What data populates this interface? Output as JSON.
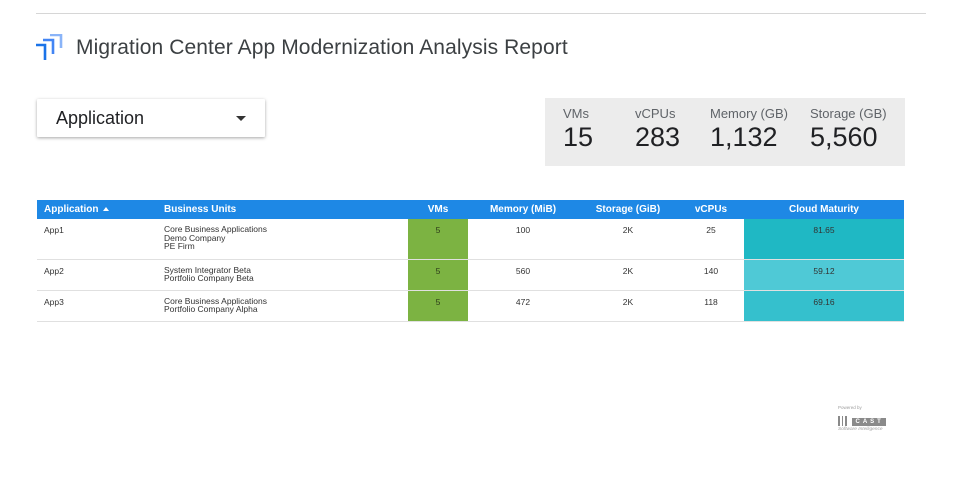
{
  "header": {
    "title": "Migration Center App Modernization Analysis Report",
    "logo_icon": "stacked-arrows-logo-icon",
    "logo_color": "#4285f4"
  },
  "filter": {
    "label": "Application",
    "icon": "caret-down-icon"
  },
  "kpis": [
    {
      "label": "VMs",
      "value": "15"
    },
    {
      "label": "vCPUs",
      "value": "283"
    },
    {
      "label": "Memory (GB)",
      "value": "1,132"
    },
    {
      "label": "Storage (GB)",
      "value": "5,560"
    }
  ],
  "table": {
    "columns": {
      "application": "Application",
      "business_units": "Business Units",
      "vms": "VMs",
      "memory": "Memory (MiB)",
      "storage": "Storage (GiB)",
      "vcpus": "vCPUs",
      "cloud_maturity": "Cloud Maturity"
    },
    "sort": {
      "column": "Application",
      "direction": "ascending"
    },
    "header_color": "#1e88e5",
    "vms_heat_color": "#7cb342",
    "rows": [
      {
        "application": "App1",
        "business_units": [
          "Core Business Applications",
          "Demo Company",
          "PE Firm"
        ],
        "vms": "5",
        "memory": "100",
        "storage": "2K",
        "vcpus": "25",
        "cloud_maturity": "81.65",
        "maturity_color": "#1fb8c4"
      },
      {
        "application": "App2",
        "business_units": [
          "System Integrator Beta",
          "Portfolio Company Beta"
        ],
        "vms": "5",
        "memory": "560",
        "storage": "2K",
        "vcpus": "140",
        "cloud_maturity": "59.12",
        "maturity_color": "#4fc9d6"
      },
      {
        "application": "App3",
        "business_units": [
          "Core Business Applications",
          "Portfolio Company Alpha"
        ],
        "vms": "5",
        "memory": "472",
        "storage": "2K",
        "vcpus": "118",
        "cloud_maturity": "69.16",
        "maturity_color": "#35c0cd"
      }
    ]
  },
  "footer": {
    "powered_by": "Powered by",
    "brand": "CAST",
    "tagline": "Software Intelligence",
    "brand_color": "#8a8a8a"
  }
}
